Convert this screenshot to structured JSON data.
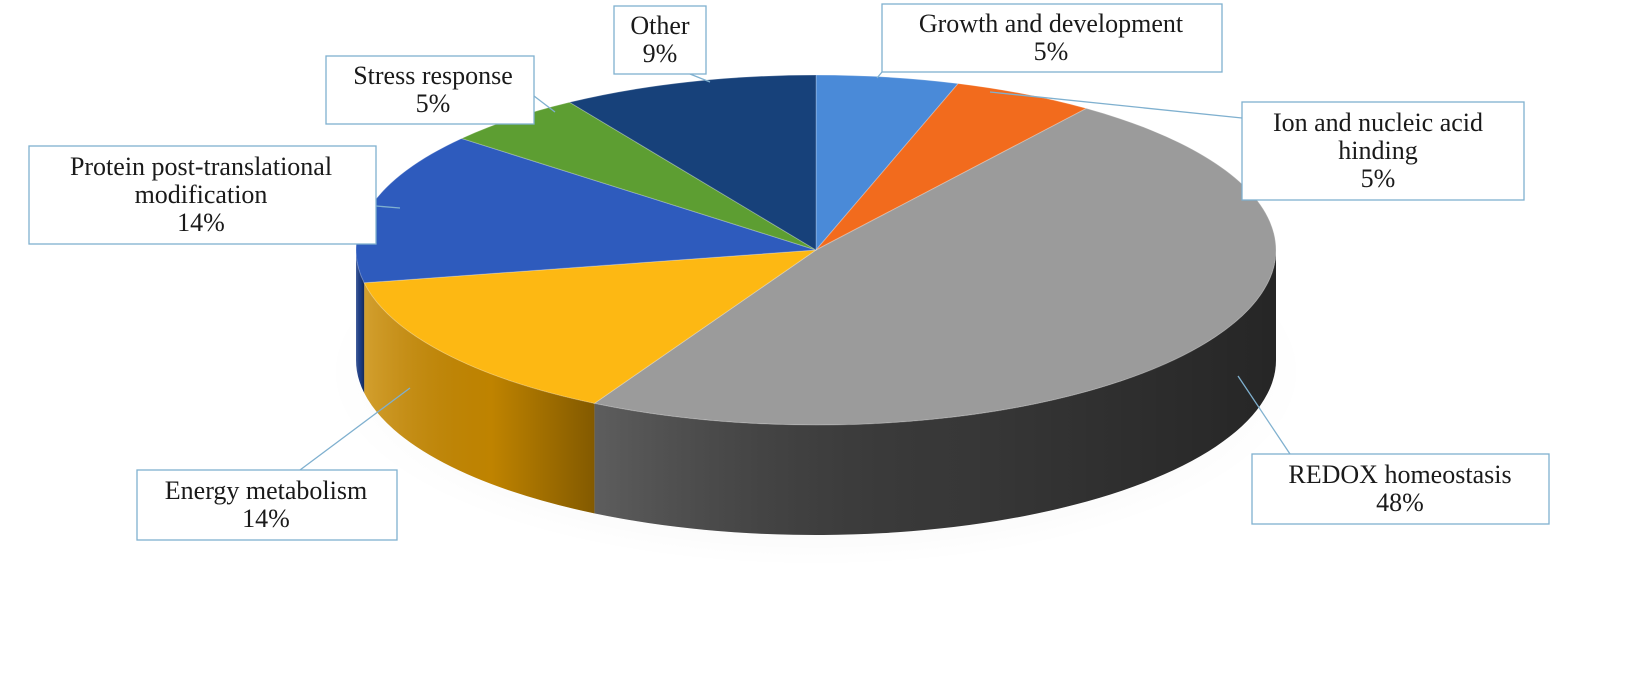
{
  "chart_data": {
    "type": "pie",
    "title": "",
    "categories": [
      "Growth and development",
      "Ion and nucleic acid hinding",
      "REDOX homeostasis",
      "Energy metabolism",
      "Protein post-translational modification",
      "Stress response",
      "Other"
    ],
    "values": [
      5,
      5,
      48,
      14,
      14,
      5,
      9
    ],
    "value_labels": [
      "5%",
      "5%",
      "48%",
      "14%",
      "14%",
      "5%",
      "9%"
    ],
    "label_lines": [
      [
        "Growth and development",
        "5%"
      ],
      [
        "Ion and nucleic acid",
        "hinding",
        "5%"
      ],
      [
        "REDOX homeostasis",
        "48%"
      ],
      [
        "Energy metabolism",
        "14%"
      ],
      [
        "Protein post-translational",
        "modification",
        "14%"
      ],
      [
        "Stress response",
        "5%"
      ],
      [
        "Other",
        "9%"
      ]
    ],
    "colors": [
      "#4a8ad8",
      "#f26b1d",
      "#9b9b9b",
      "#fdb813",
      "#2e5bbd",
      "#5d9e32",
      "#17417a"
    ],
    "side_colors": [
      "#2f6bb5",
      "#c4500f",
      "#3a3a3a",
      "#c98a00",
      "#1e3f8a",
      "#3f7020",
      "#0e2a52"
    ],
    "start": "12 o'clock",
    "direction": "clockwise",
    "style": "3D",
    "legend": "none"
  }
}
